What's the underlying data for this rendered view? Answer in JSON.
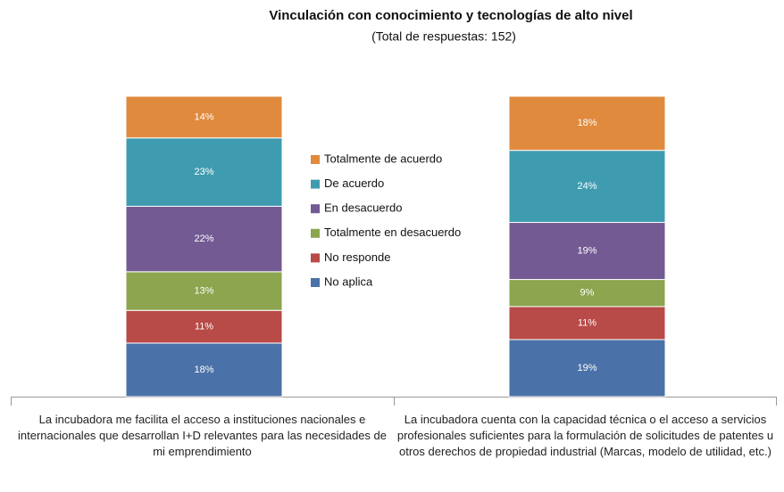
{
  "chart_data": {
    "type": "stacked-bar-100",
    "title": "Vinculación con conocimiento y tecnologías de alto nivel",
    "subtitle": "(Total de respuestas: 152)",
    "categories": [
      "La incubadora me facilita el acceso a instituciones nacionales e internacionales que desarrollan I+D relevantes para las necesidades de mi emprendimiento",
      "La incubadora cuenta con la capacidad técnica o el acceso a servicios profesionales suficientes para la formulación de solicitudes de patentes u otros derechos de propiedad industrial (Marcas, modelo de utilidad, etc.)"
    ],
    "series": [
      {
        "name": "No aplica",
        "color": "#4a72a8",
        "values": [
          18,
          19
        ],
        "value_labels": [
          "18%",
          "19%"
        ]
      },
      {
        "name": "No responde",
        "color": "#b84a47",
        "values": [
          11,
          11
        ],
        "value_labels": [
          "11%",
          "11%"
        ]
      },
      {
        "name": "Totalmente en desacuerdo",
        "color": "#8ca54e",
        "values": [
          13,
          9
        ],
        "value_labels": [
          "13%",
          "9%"
        ]
      },
      {
        "name": "En desacuerdo",
        "color": "#735a93",
        "values": [
          22,
          19
        ],
        "value_labels": [
          "22%",
          "19%"
        ]
      },
      {
        "name": "De acuerdo",
        "color": "#3f9cb0",
        "values": [
          23,
          24
        ],
        "value_labels": [
          "23%",
          "24%"
        ]
      },
      {
        "name": "Totalmente de acuerdo",
        "color": "#e08a3e",
        "values": [
          14,
          18
        ],
        "value_labels": [
          "14%",
          "18%"
        ]
      }
    ],
    "legend": "center"
  }
}
